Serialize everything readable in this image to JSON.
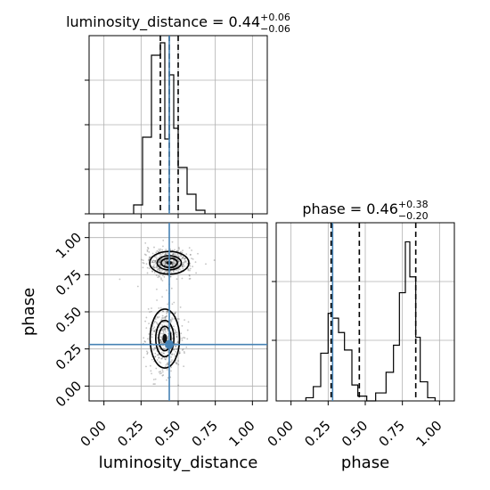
{
  "chart_data": {
    "type": "corner",
    "parameters": [
      "luminosity_distance",
      "phase"
    ],
    "range": [
      -0.1,
      1.1
    ],
    "ticks": {
      "values": [
        0.0,
        0.25,
        0.5,
        0.75,
        1.0
      ],
      "labels": [
        "0.00",
        "0.25",
        "0.50",
        "0.75",
        "1.00"
      ]
    },
    "grid": true,
    "truth": {
      "luminosity_distance": 0.44,
      "phase": 0.28
    },
    "marginals": [
      {
        "parameter": "luminosity_distance",
        "title_text": "luminosity_distance = 0.44",
        "title_sup": "+0.06",
        "title_sub": "−0.06",
        "quantile_lines": [
          0.38,
          0.44,
          0.5
        ],
        "bin_edges": [
          0.2,
          0.26,
          0.32,
          0.38,
          0.41,
          0.44,
          0.47,
          0.5,
          0.56,
          0.62,
          0.68
        ],
        "counts": [
          0.05,
          0.43,
          0.89,
          0.96,
          0.42,
          0.78,
          0.48,
          0.26,
          0.11,
          0.02
        ],
        "ylim": [
          0,
          1
        ]
      },
      {
        "parameter": "phase",
        "title_text": "phase = 0.46",
        "title_sup": "+0.38",
        "title_sub": "−0.20",
        "quantile_lines": [
          0.27,
          0.46,
          0.84
        ],
        "bin_edges": [
          0.1,
          0.15,
          0.2,
          0.25,
          0.28,
          0.32,
          0.36,
          0.41,
          0.45,
          0.51,
          0.57,
          0.64,
          0.69,
          0.73,
          0.77,
          0.8,
          0.84,
          0.87,
          0.92,
          0.97
        ],
        "counts": [
          0.02,
          0.09,
          0.3,
          0.55,
          0.52,
          0.43,
          0.32,
          0.1,
          0.03,
          0.0,
          0.05,
          0.18,
          0.35,
          0.68,
          1.0,
          0.78,
          0.4,
          0.12,
          0.02
        ],
        "ylim": [
          0,
          1.12
        ]
      }
    ],
    "joint": {
      "x": "luminosity_distance",
      "y": "phase",
      "modes": [
        {
          "cx": 0.44,
          "cy": 0.83,
          "sx": 0.06,
          "sy": 0.035,
          "weight": 0.55
        },
        {
          "cx": 0.41,
          "cy": 0.32,
          "sx": 0.045,
          "sy": 0.09,
          "weight": 0.45
        }
      ],
      "contour_levels": [
        0.4,
        0.68,
        0.95
      ]
    },
    "xlabels": [
      "luminosity_distance",
      "phase"
    ],
    "ylabels": [
      "",
      "phase"
    ],
    "colors": {
      "truth": "#4682b4",
      "hist": "#000000",
      "grid": "#b0b0b0",
      "points": "#555555"
    }
  }
}
